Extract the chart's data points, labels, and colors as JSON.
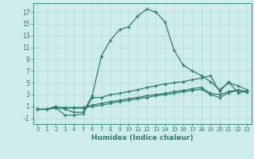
{
  "xlabel": "Humidex (Indice chaleur)",
  "background_color": "#cdecea",
  "grid_color": "#b8deda",
  "line_color": "#2e7d6e",
  "xlim": [
    -0.5,
    23.5
  ],
  "ylim": [
    -2.0,
    18.5
  ],
  "xticks": [
    0,
    1,
    2,
    3,
    4,
    5,
    6,
    7,
    8,
    9,
    10,
    11,
    12,
    13,
    14,
    15,
    16,
    17,
    18,
    19,
    20,
    21,
    22,
    23
  ],
  "yticks": [
    -1,
    1,
    3,
    5,
    7,
    9,
    11,
    13,
    15,
    17
  ],
  "series": [
    [
      0.5,
      0.5,
      1.0,
      0.5,
      0.0,
      0.0,
      2.8,
      9.5,
      12.2,
      14.0,
      14.5,
      16.3,
      17.5,
      17.0,
      15.3,
      10.5,
      8.0,
      7.0,
      6.2,
      5.2,
      3.8,
      5.0,
      4.5,
      3.8
    ],
    [
      0.5,
      0.5,
      0.8,
      -0.5,
      -0.5,
      -0.3,
      2.5,
      2.5,
      3.0,
      3.2,
      3.5,
      3.8,
      4.2,
      4.5,
      4.8,
      5.0,
      5.2,
      5.5,
      5.8,
      6.2,
      3.5,
      5.2,
      3.3,
      3.5
    ],
    [
      0.5,
      0.5,
      0.8,
      0.8,
      0.8,
      0.8,
      1.2,
      1.5,
      1.8,
      2.0,
      2.3,
      2.5,
      2.8,
      3.0,
      3.2,
      3.5,
      3.7,
      4.0,
      4.2,
      3.2,
      3.0,
      3.5,
      3.8,
      3.5
    ],
    [
      0.5,
      0.5,
      0.7,
      0.7,
      0.7,
      0.7,
      1.0,
      1.2,
      1.5,
      1.8,
      2.0,
      2.3,
      2.5,
      2.8,
      3.0,
      3.2,
      3.5,
      3.7,
      3.9,
      3.0,
      2.5,
      3.3,
      3.7,
      3.4
    ]
  ]
}
